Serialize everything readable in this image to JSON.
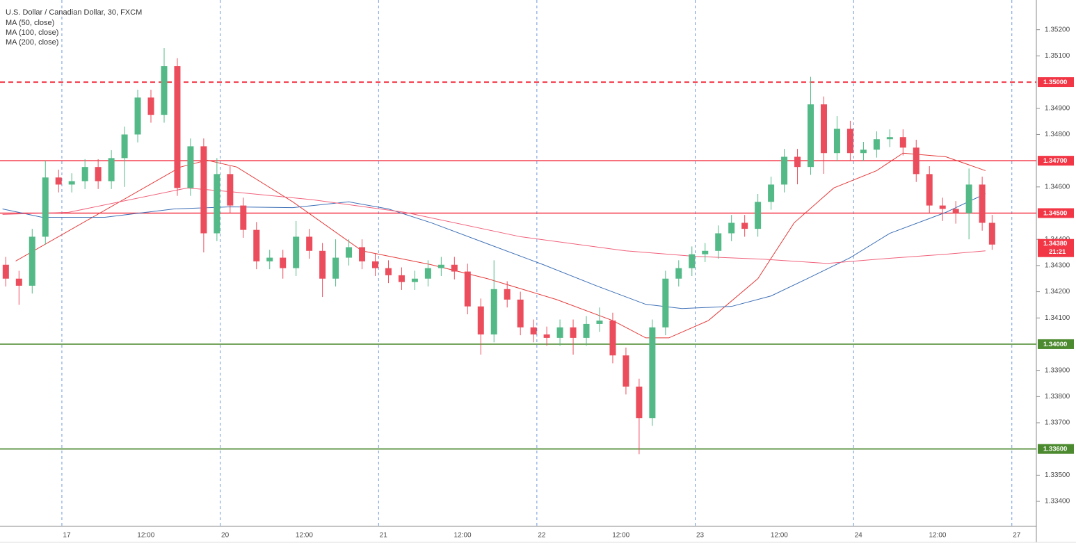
{
  "chart_data": {
    "type": "candlestick",
    "title": "U.S. Dollar / Canadian Dollar, 30, FXCM",
    "up_color": "#53b987",
    "down_color": "#eb4d5c",
    "x": [
      1,
      5,
      9,
      13,
      17,
      21,
      25,
      29,
      33,
      37,
      41,
      45,
      49,
      53,
      57,
      61,
      65,
      69,
      73,
      77,
      81,
      85,
      89,
      93,
      97,
      101,
      105,
      109,
      113,
      117,
      121,
      125,
      129,
      133,
      137,
      141,
      145,
      149,
      153,
      157,
      161,
      165,
      169,
      173,
      177,
      181,
      185,
      189,
      193,
      197,
      201,
      205,
      209,
      213,
      217,
      221,
      225,
      229,
      233,
      237,
      241,
      245,
      249,
      253,
      257,
      261,
      265,
      269,
      273,
      277,
      281,
      285,
      289,
      293,
      297,
      300
    ],
    "open": [
      1.34303,
      1.3425,
      1.34223,
      1.3441,
      1.34636,
      1.34609,
      1.34622,
      1.34676,
      1.34622,
      1.3471,
      1.348,
      1.34941,
      1.34875,
      1.35061,
      1.34596,
      1.34755,
      1.34423,
      1.34649,
      1.34529,
      1.34436,
      1.34316,
      1.3433,
      1.3429,
      1.3441,
      1.34356,
      1.3425,
      1.3433,
      1.3437,
      1.34316,
      1.3429,
      1.34263,
      1.34237,
      1.3425,
      1.3429,
      1.34303,
      1.34277,
      1.34144,
      1.34037,
      1.3421,
      1.3417,
      1.34064,
      1.34037,
      1.34024,
      1.34064,
      1.34024,
      1.34077,
      1.3409,
      1.33957,
      1.33838,
      1.33718,
      1.34064,
      1.3425,
      1.3429,
      1.34343,
      1.34356,
      1.34423,
      1.34463,
      1.3444,
      1.34543,
      1.34609,
      1.34715,
      1.34676,
      1.34915,
      1.34729,
      1.34822,
      1.34729,
      1.34742,
      1.34782,
      1.3479,
      1.3475,
      1.34649,
      1.34529,
      1.34516,
      1.345,
      1.34609,
      1.34463
    ],
    "high": [
      1.34333,
      1.3428,
      1.3444,
      1.347,
      1.34666,
      1.34652,
      1.34706,
      1.34706,
      1.3474,
      1.3483,
      1.34971,
      1.34971,
      1.3513,
      1.35091,
      1.34785,
      1.34785,
      1.3471,
      1.34679,
      1.34559,
      1.34466,
      1.3436,
      1.3436,
      1.3447,
      1.3444,
      1.34386,
      1.344,
      1.344,
      1.344,
      1.34346,
      1.3432,
      1.34293,
      1.3428,
      1.3432,
      1.34333,
      1.34333,
      1.34307,
      1.34174,
      1.3432,
      1.3424,
      1.342,
      1.34094,
      1.34067,
      1.34094,
      1.34094,
      1.34107,
      1.3414,
      1.3412,
      1.33987,
      1.33868,
      1.34094,
      1.3428,
      1.3432,
      1.34373,
      1.34386,
      1.34453,
      1.34493,
      1.34493,
      1.34573,
      1.34639,
      1.34745,
      1.34745,
      1.3502,
      1.34945,
      1.3487,
      1.34852,
      1.34772,
      1.34812,
      1.3482,
      1.3482,
      1.3478,
      1.34679,
      1.34559,
      1.34546,
      1.3467,
      1.34639,
      1.34493
    ],
    "low": [
      1.3422,
      1.3415,
      1.34193,
      1.3438,
      1.34579,
      1.34579,
      1.34592,
      1.34592,
      1.34592,
      1.346,
      1.3477,
      1.34845,
      1.34845,
      1.34566,
      1.34566,
      1.3435,
      1.34393,
      1.34499,
      1.34406,
      1.34286,
      1.34286,
      1.3425,
      1.3426,
      1.34326,
      1.3418,
      1.3422,
      1.343,
      1.34286,
      1.3426,
      1.34233,
      1.34207,
      1.34207,
      1.3422,
      1.3426,
      1.34247,
      1.34114,
      1.3396,
      1.34007,
      1.3414,
      1.34034,
      1.34007,
      1.33994,
      1.33994,
      1.3396,
      1.33994,
      1.34047,
      1.33927,
      1.33808,
      1.3358,
      1.33688,
      1.34034,
      1.3422,
      1.3426,
      1.34313,
      1.34326,
      1.34393,
      1.3441,
      1.3441,
      1.34513,
      1.34579,
      1.3461,
      1.34646,
      1.3465,
      1.34699,
      1.34699,
      1.34699,
      1.34712,
      1.34752,
      1.3472,
      1.34619,
      1.34499,
      1.3447,
      1.3446,
      1.344,
      1.34433,
      1.3436
    ],
    "close": [
      1.3425,
      1.34223,
      1.3441,
      1.34636,
      1.34609,
      1.34622,
      1.34676,
      1.34622,
      1.3471,
      1.348,
      1.34941,
      1.34875,
      1.35061,
      1.34596,
      1.34755,
      1.34423,
      1.34649,
      1.34529,
      1.34436,
      1.34316,
      1.3433,
      1.3429,
      1.3441,
      1.34356,
      1.3425,
      1.3433,
      1.3437,
      1.34316,
      1.3429,
      1.34263,
      1.34237,
      1.3425,
      1.3429,
      1.34303,
      1.34277,
      1.34144,
      1.34037,
      1.3421,
      1.3417,
      1.34064,
      1.34037,
      1.34024,
      1.34064,
      1.34024,
      1.34077,
      1.3409,
      1.33957,
      1.33838,
      1.33718,
      1.34064,
      1.3425,
      1.3429,
      1.34343,
      1.34356,
      1.34423,
      1.34463,
      1.3444,
      1.34543,
      1.34609,
      1.34715,
      1.34676,
      1.34915,
      1.34729,
      1.34822,
      1.34729,
      1.34742,
      1.34782,
      1.3479,
      1.3475,
      1.34649,
      1.34529,
      1.34516,
      1.345,
      1.34609,
      1.34463,
      1.3438
    ],
    "series": [
      {
        "name": "MA (50, close)",
        "color": "#e53b3b",
        "x": [
          4,
          54,
          62,
          71,
          88,
          109,
          130,
          147,
          168,
          185,
          195,
          202,
          214,
          229,
          240,
          252,
          265,
          273,
          286,
          298
        ],
        "values": [
          1.34317,
          1.34676,
          1.34702,
          1.34676,
          1.34543,
          1.34356,
          1.34303,
          1.3425,
          1.3417,
          1.3409,
          1.34024,
          1.34024,
          1.3409,
          1.3425,
          1.34463,
          1.34596,
          1.34662,
          1.34729,
          1.34715,
          1.34662
        ]
      },
      {
        "name": "MA (100, close)",
        "color": "#3d6fb6",
        "x": [
          0,
          12,
          31,
          52,
          69,
          88,
          105,
          117,
          130,
          147,
          164,
          180,
          195,
          206,
          221,
          233,
          244,
          257,
          269,
          286,
          298
        ],
        "values": [
          1.34516,
          1.34484,
          1.34484,
          1.34516,
          1.34524,
          1.34521,
          1.34543,
          1.34516,
          1.34463,
          1.34383,
          1.34303,
          1.34223,
          1.34152,
          1.34136,
          1.34144,
          1.34184,
          1.3425,
          1.3433,
          1.34423,
          1.34503,
          1.34574
        ]
      },
      {
        "name": "MA (200, close)",
        "color": "#f0607a",
        "x": [
          0,
          20,
          56,
          69,
          94,
          122,
          157,
          189,
          210,
          231,
          250,
          265,
          286,
          298
        ],
        "values": [
          1.34495,
          1.34503,
          1.34596,
          1.34582,
          1.34551,
          1.34503,
          1.3441,
          1.34356,
          1.34335,
          1.34324,
          1.34308,
          1.34324,
          1.34343,
          1.34356
        ]
      }
    ],
    "levels": [
      {
        "value": 1.35,
        "label": "1.35000",
        "color": "#f23645",
        "dashed": true
      },
      {
        "value": 1.347,
        "label": "1.34700",
        "color": "#f23645",
        "dashed": false
      },
      {
        "value": 1.345,
        "label": "1.34500",
        "color": "#f23645",
        "dashed": false
      },
      {
        "value": 1.34,
        "label": "1.34000",
        "color": "#4c8a2f",
        "dashed": false
      },
      {
        "value": 1.336,
        "label": "1.33600",
        "color": "#4c8a2f",
        "dashed": false
      }
    ],
    "last_price": {
      "value": 1.3438,
      "label": "1.34380",
      "color": "#f23645"
    },
    "countdown": "21:21",
    "xlim": [
      0,
      313
    ],
    "ylim": [
      1.3331,
      1.353
    ],
    "xticks": [
      {
        "value": 18,
        "label": "17"
      },
      {
        "value": 42,
        "label": "12:00"
      },
      {
        "value": 66,
        "label": "20"
      },
      {
        "value": 90,
        "label": "12:00"
      },
      {
        "value": 114,
        "label": "21"
      },
      {
        "value": 138,
        "label": "12:00"
      },
      {
        "value": 162,
        "label": "22"
      },
      {
        "value": 186,
        "label": "12:00"
      },
      {
        "value": 210,
        "label": "23"
      },
      {
        "value": 234,
        "label": "12:00"
      },
      {
        "value": 258,
        "label": "24"
      },
      {
        "value": 282,
        "label": "12:00"
      },
      {
        "value": 306,
        "label": "27"
      }
    ],
    "yticks": [
      {
        "value": 1.334,
        "label": "1.33400"
      },
      {
        "value": 1.335,
        "label": "1.33500"
      },
      {
        "value": 1.337,
        "label": "1.33700"
      },
      {
        "value": 1.338,
        "label": "1.33800"
      },
      {
        "value": 1.339,
        "label": "1.33900"
      },
      {
        "value": 1.341,
        "label": "1.34100"
      },
      {
        "value": 1.342,
        "label": "1.34200"
      },
      {
        "value": 1.343,
        "label": "1.34300"
      },
      {
        "value": 1.344,
        "label": "1.34400"
      },
      {
        "value": 1.346,
        "label": "1.34600"
      },
      {
        "value": 1.348,
        "label": "1.34800"
      },
      {
        "value": 1.349,
        "label": "1.34900"
      },
      {
        "value": 1.351,
        "label": "1.35100"
      },
      {
        "value": 1.352,
        "label": "1.35200"
      }
    ],
    "day_separator_color": "#4a7fd0"
  }
}
